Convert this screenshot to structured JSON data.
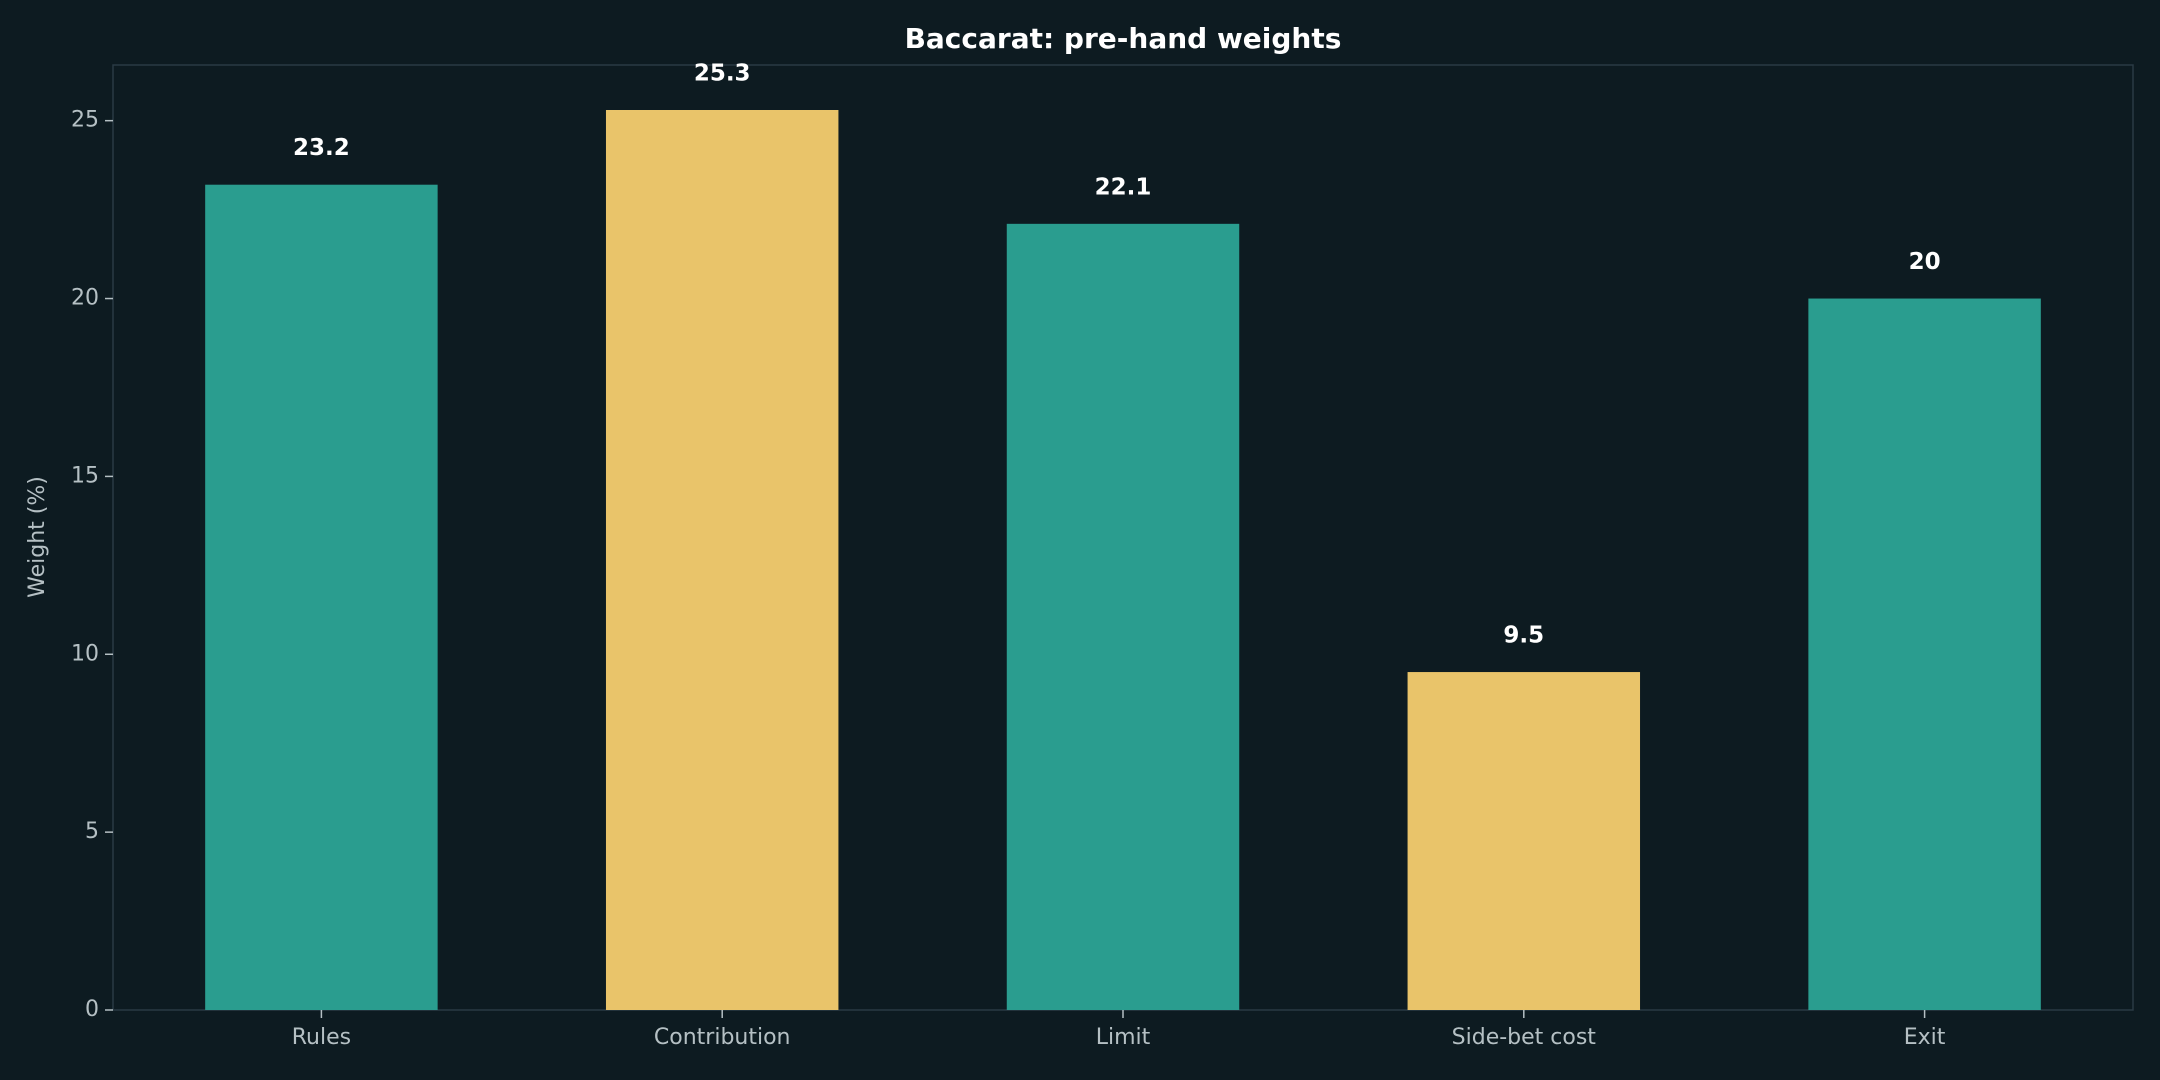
{
  "chart_data": {
    "type": "bar",
    "title": "Baccarat: pre-hand weights",
    "y_label": "Weight (%)",
    "categories": [
      "Rules",
      "Contribution",
      "Limit",
      "Side-bet cost",
      "Exit"
    ],
    "values": [
      23.2,
      25.3,
      22.1,
      9.5,
      20
    ],
    "colors": [
      "#2a9d8f",
      "#e9c46a",
      "#2a9d8f",
      "#e9c46a",
      "#2a9d8f"
    ],
    "ylim": [
      0,
      26.565
    ],
    "yticks": [
      0,
      5,
      10,
      15,
      20,
      25
    ],
    "grid": false
  }
}
